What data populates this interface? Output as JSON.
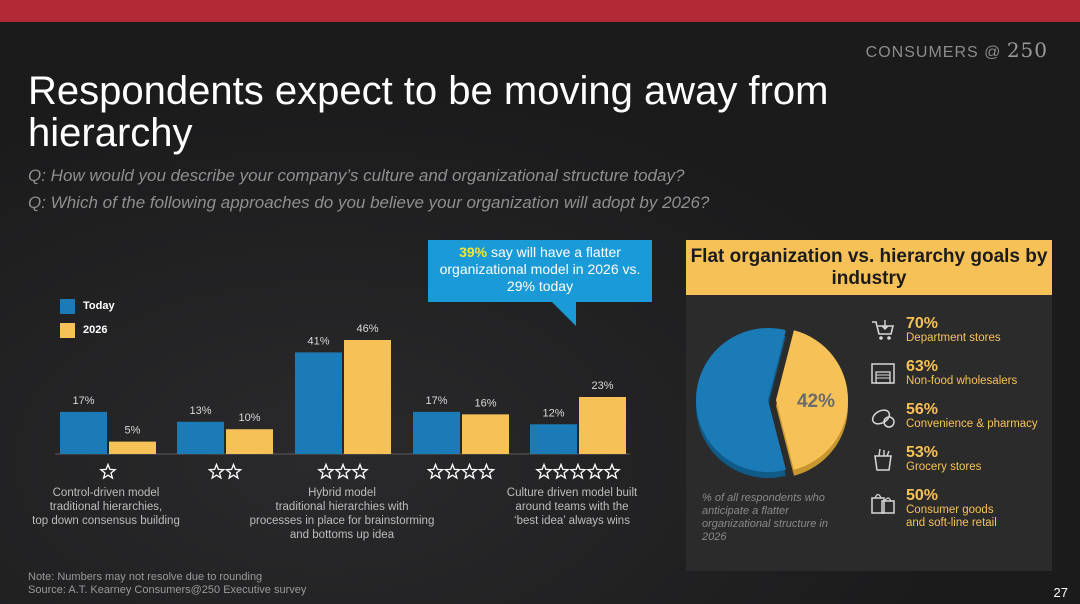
{
  "header": {
    "brand_text": "CONSUMERS @",
    "brand_number": "250",
    "title": "Respondents expect to be moving away from hierarchy",
    "question_1": "Q: How would you describe your company’s culture and organizational structure today?",
    "question_2": "Q: Which of the following approaches do you believe your organization will adopt by 2026?"
  },
  "callout": {
    "highlight": "39%",
    "text": " say will have a flatter organizational model in 2026 vs. 29% today"
  },
  "colors": {
    "today": "#1b7bb6",
    "y2026": "#f6c257",
    "accent_red": "#b22a35"
  },
  "chart_data": {
    "type": "bar",
    "categories": [
      "1 star",
      "2 stars",
      "3 stars",
      "4 stars",
      "5 stars"
    ],
    "series": [
      {
        "name": "Today",
        "values": [
          17,
          13,
          41,
          17,
          12
        ],
        "labels": [
          "17%",
          "13%",
          "41%",
          "17%",
          "12%"
        ]
      },
      {
        "name": "2026",
        "values": [
          5,
          10,
          46,
          16,
          23
        ],
        "labels": [
          "5%",
          "10%",
          "46%",
          "16%",
          "23%"
        ]
      }
    ],
    "stars": [
      1,
      2,
      3,
      4,
      5
    ],
    "ylim": [
      0,
      50
    ],
    "annotations": {
      "cat_1": "Control-driven model traditional hierarchies, top down consensus building",
      "cat_3": "Hybrid model traditional hierarchies with processes in place for brainstorming and bottoms up idea",
      "cat_5": "Culture driven model built around teams with the ‘best idea’ always wins"
    }
  },
  "legend": {
    "today": "Today",
    "y2026": "2026"
  },
  "category_text": {
    "cat1": [
      "Control-driven model",
      "traditional hierarchies,",
      "top down consensus building"
    ],
    "cat3": [
      "Hybrid model",
      "traditional hierarchies with",
      "processes in place for brainstorming",
      "and bottoms up idea"
    ],
    "cat5": [
      "Culture driven model built",
      "around teams with the",
      "‘best idea’ always wins"
    ]
  },
  "panel": {
    "title": "Flat organization vs. hierarchy goals by industry",
    "pie_value": 42,
    "pie_label": "42%",
    "caption": "% of all respondents who anticipate  a  flatter organizational structure in 2026",
    "industries": [
      {
        "pct": "70%",
        "name": "Department stores",
        "icon": "shopping-cart-icon"
      },
      {
        "pct": "63%",
        "name": "Non-food wholesalers",
        "icon": "warehouse-icon"
      },
      {
        "pct": "56%",
        "name": "Convenience & pharmacy",
        "icon": "pills-icon"
      },
      {
        "pct": "53%",
        "name": "Grocery stores",
        "icon": "grocery-bag-icon"
      },
      {
        "pct": "50%",
        "name": "Consumer goods and soft-line retail",
        "name_lines": [
          "Consumer goods",
          "and soft-line retail"
        ],
        "icon": "shopping-bags-icon"
      }
    ]
  },
  "footer": {
    "note": "Note: Numbers may not resolve due to rounding",
    "source": "Source: A.T. Kearney Consumers@250 Executive survey",
    "page": "27"
  }
}
